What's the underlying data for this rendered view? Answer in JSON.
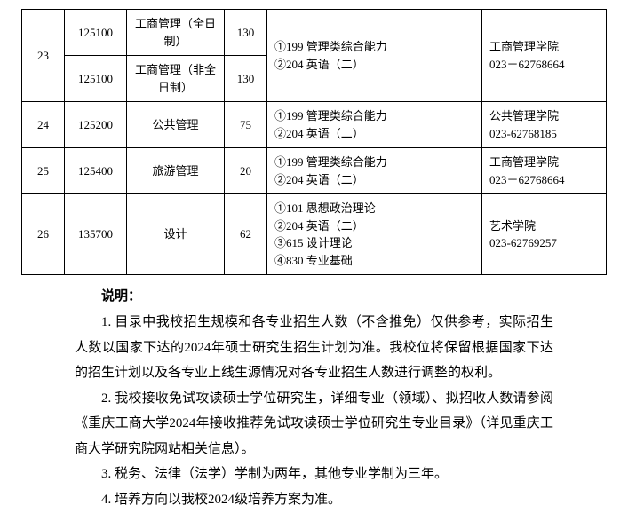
{
  "table": {
    "rows": [
      {
        "seq": "23",
        "code": "125100",
        "major": "工商管理（全日制）",
        "quota": "130",
        "subjects": "①199 管理类综合能力\n②204 英语（二）",
        "college": "工商管理学院\n023－62768664",
        "rowspan_seq": 2,
        "rowspan_subjects": 2,
        "rowspan_college": 2
      },
      {
        "code": "125100",
        "major": "工商管理（非全日制）",
        "quota": "130"
      },
      {
        "seq": "24",
        "code": "125200",
        "major": "公共管理",
        "quota": "75",
        "subjects": "①199 管理类综合能力\n②204 英语（二）",
        "college": "公共管理学院\n023-62768185"
      },
      {
        "seq": "25",
        "code": "125400",
        "major": "旅游管理",
        "quota": "20",
        "subjects": "①199 管理类综合能力\n②204 英语（二）",
        "college": "工商管理学院\n023－62768664"
      },
      {
        "seq": "26",
        "code": "135700",
        "major": "设计",
        "quota": "62",
        "subjects": "①101 思想政治理论\n②204 英语（二）\n③615 设计理论\n④830 专业基础",
        "college": "艺术学院\n023-62769257"
      }
    ],
    "col_widths": [
      "48px",
      "70px",
      "110px",
      "48px",
      "auto",
      "140px"
    ]
  },
  "notes": {
    "title": "说明：",
    "items": [
      "1. 目录中我校招生规模和各专业招生人数（不含推免）仅供参考，实际招生人数以国家下达的2024年硕士研究生招生计划为准。我校位将保留根据国家下达的招生计划以及各专业上线生源情况对各专业招生人数进行调整的权利。",
      "2. 我校接收免试攻读硕士学位研究生，详细专业（领域）、拟招收人数请参阅《重庆工商大学2024年接收推荐免试攻读硕士学位研究生专业目录》（详见重庆工商大学研究院网站相关信息）。",
      "3. 税务、法律（法学）学制为两年，其他专业学制为三年。",
      "4. 培养方向以我校2024级培养方案为准。"
    ]
  }
}
